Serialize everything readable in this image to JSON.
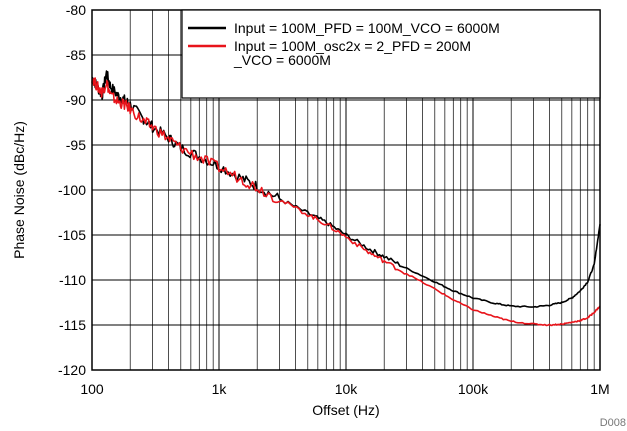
{
  "chart_data": {
    "type": "line",
    "xlabel": "Offset (Hz)",
    "ylabel": "Phase Noise (dBc/Hz)",
    "x_scale": "log",
    "xlim": [
      100,
      1000000
    ],
    "ylim": [
      -120,
      -80
    ],
    "grid": true,
    "legend_position": "top-right",
    "figure_id": "D008",
    "x_ticks": [
      {
        "value": 100,
        "label": "100"
      },
      {
        "value": 1000,
        "label": "1k"
      },
      {
        "value": 10000,
        "label": "10k"
      },
      {
        "value": 100000,
        "label": "100k"
      },
      {
        "value": 1000000,
        "label": "1M"
      }
    ],
    "y_ticks": [
      {
        "value": -80,
        "label": "-80"
      },
      {
        "value": -85,
        "label": "-85"
      },
      {
        "value": -90,
        "label": "-90"
      },
      {
        "value": -95,
        "label": "-95"
      },
      {
        "value": -100,
        "label": "-100"
      },
      {
        "value": -105,
        "label": "-105"
      },
      {
        "value": -110,
        "label": "-110"
      },
      {
        "value": -115,
        "label": "-115"
      },
      {
        "value": -120,
        "label": "-120"
      }
    ],
    "series": [
      {
        "name_lines": [
          "Input = 100M_PFD = 100M_VCO = 6000M"
        ],
        "color": "#000000",
        "points": [
          [
            100,
            -87.5
          ],
          [
            110,
            -88.5
          ],
          [
            120,
            -89.5
          ],
          [
            130,
            -87.0
          ],
          [
            140,
            -88.5
          ],
          [
            160,
            -89.5
          ],
          [
            180,
            -90.0
          ],
          [
            200,
            -90.5
          ],
          [
            250,
            -92.0
          ],
          [
            300,
            -93.0
          ],
          [
            400,
            -94.2
          ],
          [
            500,
            -95.3
          ],
          [
            700,
            -96.3
          ],
          [
            1000,
            -97.3
          ],
          [
            1500,
            -98.7
          ],
          [
            2000,
            -99.6
          ],
          [
            3000,
            -101.0
          ],
          [
            5000,
            -102.6
          ],
          [
            7000,
            -103.6
          ],
          [
            10000,
            -105.0
          ],
          [
            15000,
            -106.5
          ],
          [
            20000,
            -107.4
          ],
          [
            30000,
            -108.7
          ],
          [
            50000,
            -110.2
          ],
          [
            70000,
            -111.2
          ],
          [
            100000,
            -112.0
          ],
          [
            150000,
            -112.6
          ],
          [
            200000,
            -112.9
          ],
          [
            300000,
            -113.0
          ],
          [
            400000,
            -112.8
          ],
          [
            500000,
            -112.5
          ],
          [
            600000,
            -112.0
          ],
          [
            700000,
            -111.2
          ],
          [
            800000,
            -110.2
          ],
          [
            900000,
            -108.3
          ],
          [
            1000000,
            -103.8
          ]
        ]
      },
      {
        "name_lines": [
          "Input = 100M_osc2x = 2_PFD = 200M",
          "_VCO = 6000M"
        ],
        "color": "#e8141b",
        "points": [
          [
            100,
            -87.5
          ],
          [
            110,
            -88.5
          ],
          [
            120,
            -89.2
          ],
          [
            130,
            -88.0
          ],
          [
            140,
            -89.5
          ],
          [
            160,
            -90.2
          ],
          [
            180,
            -90.5
          ],
          [
            200,
            -91.0
          ],
          [
            250,
            -92.3
          ],
          [
            300,
            -93.0
          ],
          [
            400,
            -94.3
          ],
          [
            500,
            -95.3
          ],
          [
            700,
            -96.4
          ],
          [
            1000,
            -97.5
          ],
          [
            1500,
            -98.8
          ],
          [
            2000,
            -99.7
          ],
          [
            3000,
            -101.1
          ],
          [
            5000,
            -102.7
          ],
          [
            7000,
            -103.8
          ],
          [
            10000,
            -105.2
          ],
          [
            15000,
            -106.9
          ],
          [
            20000,
            -107.9
          ],
          [
            30000,
            -109.3
          ],
          [
            50000,
            -111.0
          ],
          [
            70000,
            -112.2
          ],
          [
            100000,
            -113.3
          ],
          [
            150000,
            -114.1
          ],
          [
            200000,
            -114.6
          ],
          [
            300000,
            -114.9
          ],
          [
            400000,
            -115.0
          ],
          [
            500000,
            -114.9
          ],
          [
            600000,
            -114.7
          ],
          [
            700000,
            -114.5
          ],
          [
            800000,
            -114.2
          ],
          [
            900000,
            -113.6
          ],
          [
            1000000,
            -112.9
          ]
        ]
      }
    ]
  }
}
